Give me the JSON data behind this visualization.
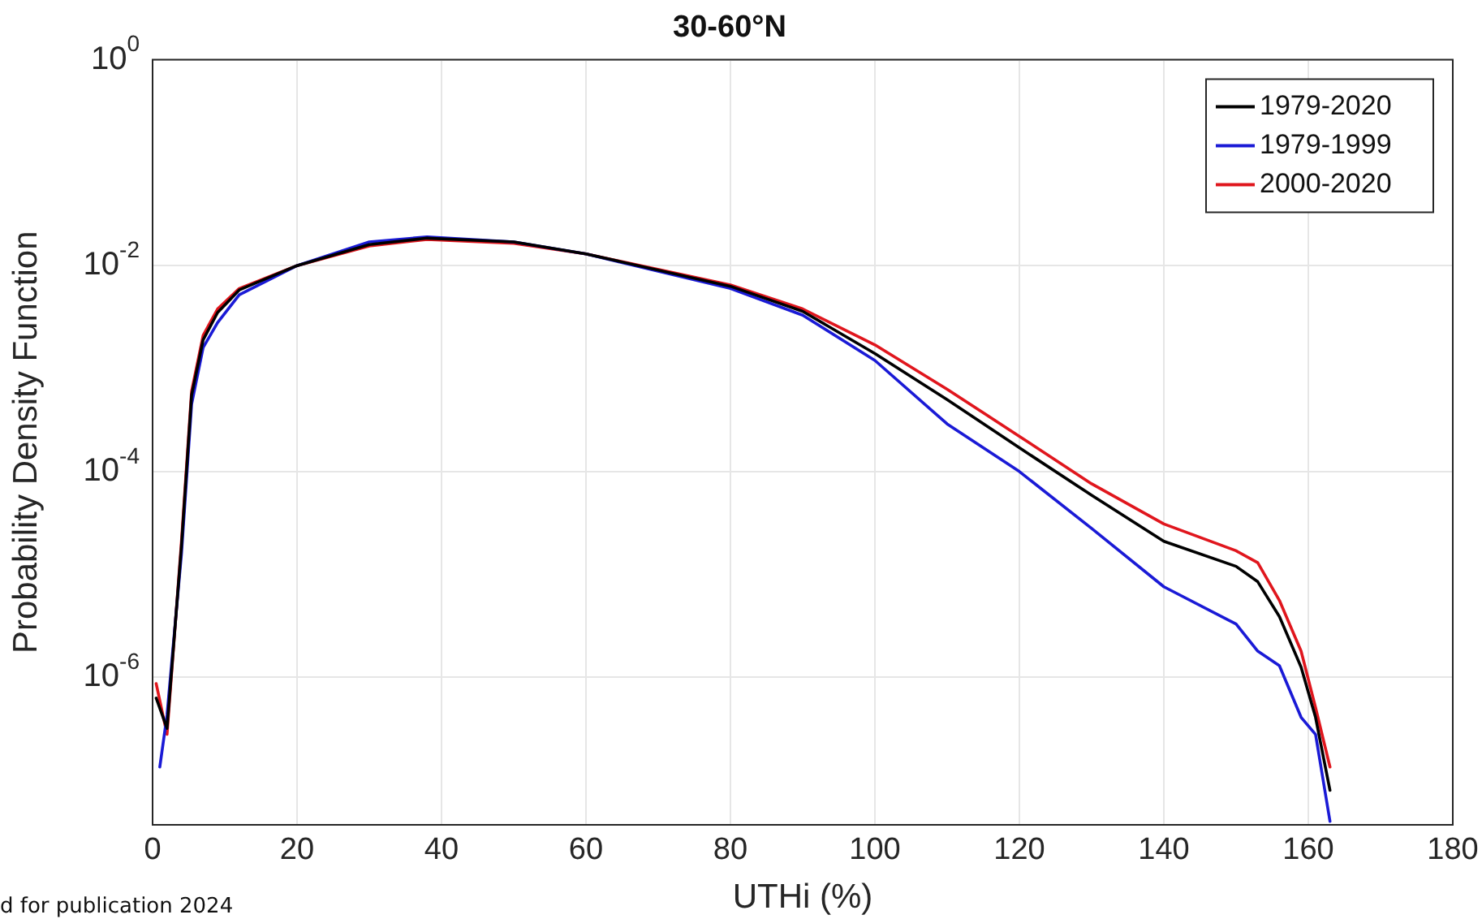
{
  "chart_data": {
    "type": "line",
    "title": "30-60°N",
    "xlabel": "UTHi (%)",
    "ylabel": "Probability Density Function",
    "xlim": [
      0,
      180
    ],
    "xticks": [
      0,
      20,
      40,
      60,
      80,
      100,
      120,
      140,
      160,
      180
    ],
    "ylim": [
      3.7e-08,
      1
    ],
    "yticks": [
      {
        "value": 1,
        "label": "10$^{0}$"
      },
      {
        "value": 0.01,
        "label": "10$^{-2}$"
      },
      {
        "value": 0.0001,
        "label": "10$^{-4}$"
      },
      {
        "value": 1e-06,
        "label": "10$^{-6}$"
      }
    ],
    "log": "y",
    "grid": true,
    "legend": "top right",
    "marker": "none",
    "line_style": "solid",
    "annotations": [
      "d for publication 2024"
    ],
    "series": [
      {
        "name": "1979-2020",
        "color": "#000000",
        "x": [
          0.5,
          2,
          4,
          5.4,
          7,
          9,
          12,
          20,
          30,
          38,
          50,
          60,
          80,
          90,
          100,
          110,
          120,
          130,
          140,
          150,
          153,
          156,
          159,
          161,
          163
        ],
        "values": [
          6.3e-07,
          3.2e-07,
          1.9e-05,
          0.00055,
          0.0019,
          0.0035,
          0.0058,
          0.01,
          0.016,
          0.0185,
          0.017,
          0.013,
          0.0063,
          0.0036,
          0.0014,
          0.0005,
          0.00017,
          5.9e-05,
          2.1e-05,
          1.2e-05,
          8.5e-06,
          3.9e-06,
          1.26e-06,
          4.1e-07,
          8e-08
        ]
      },
      {
        "name": "1979-1999",
        "color": "#1a1ad6",
        "x": [
          1,
          2,
          4,
          5.4,
          7,
          9,
          12,
          20,
          30,
          38,
          50,
          60,
          80,
          90,
          100,
          110,
          120,
          130,
          140,
          150,
          153,
          156,
          159,
          161,
          163
        ],
        "values": [
          1.35e-07,
          4.3e-07,
          1.6e-05,
          0.00045,
          0.0016,
          0.0028,
          0.0052,
          0.01,
          0.017,
          0.019,
          0.017,
          0.013,
          0.006,
          0.0033,
          0.0012,
          0.00029,
          0.0001,
          2.8e-05,
          7.6e-06,
          3.3e-06,
          1.8e-06,
          1.3e-06,
          4.1e-07,
          2.8e-07,
          4e-08
        ]
      },
      {
        "name": "2000-2020",
        "color": "#e0161d",
        "x": [
          0.5,
          2,
          4,
          5.4,
          7,
          9,
          12,
          20,
          30,
          38,
          50,
          60,
          80,
          90,
          100,
          110,
          120,
          130,
          140,
          150,
          153,
          156,
          159,
          161,
          163
        ],
        "values": [
          8.7e-07,
          2.8e-07,
          2.1e-05,
          0.0006,
          0.0021,
          0.0038,
          0.006,
          0.01,
          0.0155,
          0.018,
          0.0165,
          0.013,
          0.0065,
          0.0038,
          0.0017,
          0.00063,
          0.00022,
          7.6e-05,
          3.1e-05,
          1.7e-05,
          1.3e-05,
          5.6e-06,
          1.8e-06,
          5.1e-07,
          1.35e-07
        ]
      }
    ]
  }
}
